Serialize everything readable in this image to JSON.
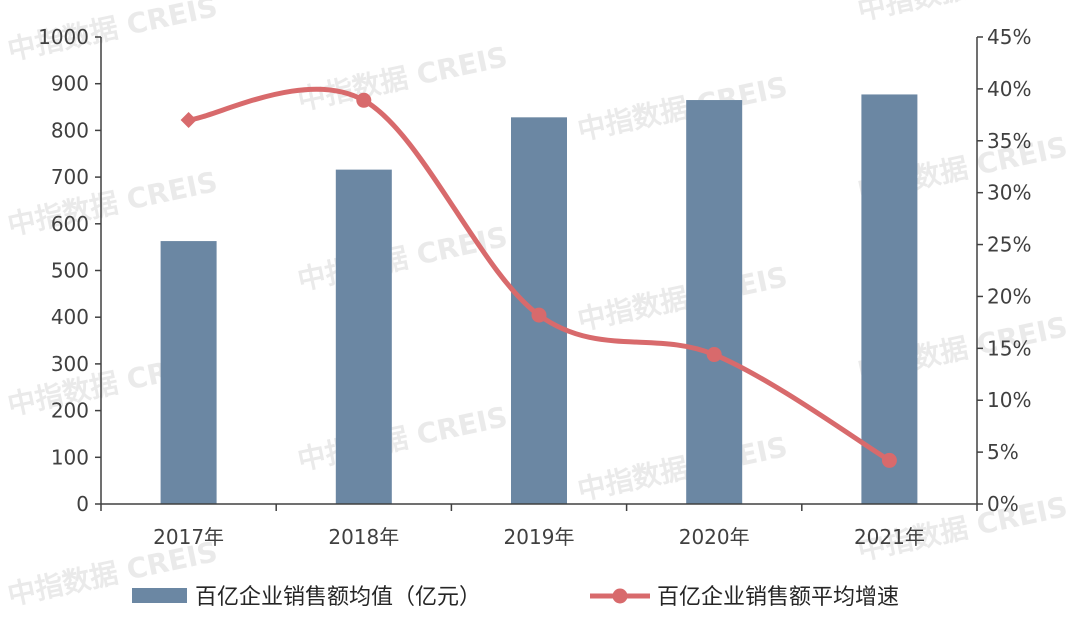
{
  "colors": {
    "bar": "#6b87a3",
    "line": "#d86a6c",
    "axis": "#404040",
    "text": "#404040",
    "watermark": "#d9d9d9"
  },
  "watermark_text": "中指数据 CREIS",
  "legend": {
    "bar_label": "百亿企业销售额均值（亿元）",
    "line_label": "百亿企业销售额平均增速"
  },
  "chart_data": {
    "type": "bar",
    "categories": [
      "2017年",
      "2018年",
      "2019年",
      "2020年",
      "2021年"
    ],
    "series": [
      {
        "name": "百亿企业销售额均值（亿元）",
        "type": "bar",
        "axis": "left",
        "values": [
          563,
          716,
          828,
          865,
          877
        ]
      },
      {
        "name": "百亿企业销售额平均增速",
        "type": "line",
        "axis": "right",
        "values": [
          37.0,
          38.9,
          18.2,
          14.4,
          4.2
        ]
      }
    ],
    "y_left": {
      "range": [
        0,
        1000
      ],
      "ticks": [
        0,
        100,
        200,
        300,
        400,
        500,
        600,
        700,
        800,
        900,
        1000
      ],
      "tick_labels": [
        "0",
        "100",
        "200",
        "300",
        "400",
        "500",
        "600",
        "700",
        "800",
        "900",
        "1000"
      ]
    },
    "y_right": {
      "range": [
        0,
        45
      ],
      "ticks": [
        0,
        5,
        10,
        15,
        20,
        25,
        30,
        35,
        40,
        45
      ],
      "tick_labels": [
        "0%",
        "5%",
        "10%",
        "15%",
        "20%",
        "25%",
        "30%",
        "35%",
        "40%",
        "45%"
      ]
    },
    "grid": false,
    "legend_position": "bottom"
  }
}
